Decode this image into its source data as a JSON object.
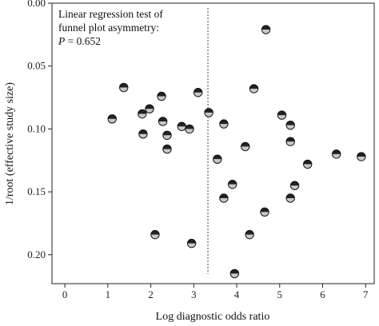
{
  "chart_data": {
    "type": "scatter",
    "xlabel": "Log diagnostic odds ratio",
    "ylabel": "1/root (effective study size)",
    "xlim": [
      -0.3,
      7.2
    ],
    "ylim": [
      0.223,
      0.0
    ],
    "y_inverted": true,
    "x_ticks": [
      "0",
      "1",
      "2",
      "3",
      "4",
      "5",
      "6",
      "7"
    ],
    "y_ticks": [
      "0.00",
      "0.05",
      "0.10",
      "0.15",
      "0.20"
    ],
    "grid": false,
    "reference_line": {
      "x": 3.33,
      "style": "dotted"
    },
    "annotation": {
      "line1": "Linear regression test of",
      "line2": "funnel plot asymmetry:",
      "line3_var": "P",
      "line3_value": " = 0.652"
    },
    "points": [
      {
        "x": 1.1,
        "y": 0.092
      },
      {
        "x": 1.37,
        "y": 0.067
      },
      {
        "x": 1.8,
        "y": 0.088
      },
      {
        "x": 1.82,
        "y": 0.104
      },
      {
        "x": 1.97,
        "y": 0.084
      },
      {
        "x": 2.1,
        "y": 0.184
      },
      {
        "x": 2.25,
        "y": 0.074
      },
      {
        "x": 2.28,
        "y": 0.094
      },
      {
        "x": 2.38,
        "y": 0.105
      },
      {
        "x": 2.38,
        "y": 0.116
      },
      {
        "x": 2.72,
        "y": 0.098
      },
      {
        "x": 2.9,
        "y": 0.1
      },
      {
        "x": 2.95,
        "y": 0.191
      },
      {
        "x": 3.1,
        "y": 0.071
      },
      {
        "x": 3.35,
        "y": 0.087
      },
      {
        "x": 3.7,
        "y": 0.096
      },
      {
        "x": 3.55,
        "y": 0.124
      },
      {
        "x": 3.7,
        "y": 0.155
      },
      {
        "x": 3.9,
        "y": 0.144
      },
      {
        "x": 3.95,
        "y": 0.215
      },
      {
        "x": 4.2,
        "y": 0.114
      },
      {
        "x": 4.3,
        "y": 0.184
      },
      {
        "x": 4.4,
        "y": 0.068
      },
      {
        "x": 4.65,
        "y": 0.166
      },
      {
        "x": 4.68,
        "y": 0.021
      },
      {
        "x": 5.05,
        "y": 0.089
      },
      {
        "x": 5.25,
        "y": 0.097
      },
      {
        "x": 5.25,
        "y": 0.11
      },
      {
        "x": 5.25,
        "y": 0.155
      },
      {
        "x": 5.35,
        "y": 0.145
      },
      {
        "x": 5.65,
        "y": 0.128
      },
      {
        "x": 6.32,
        "y": 0.12
      },
      {
        "x": 6.9,
        "y": 0.122
      }
    ]
  }
}
